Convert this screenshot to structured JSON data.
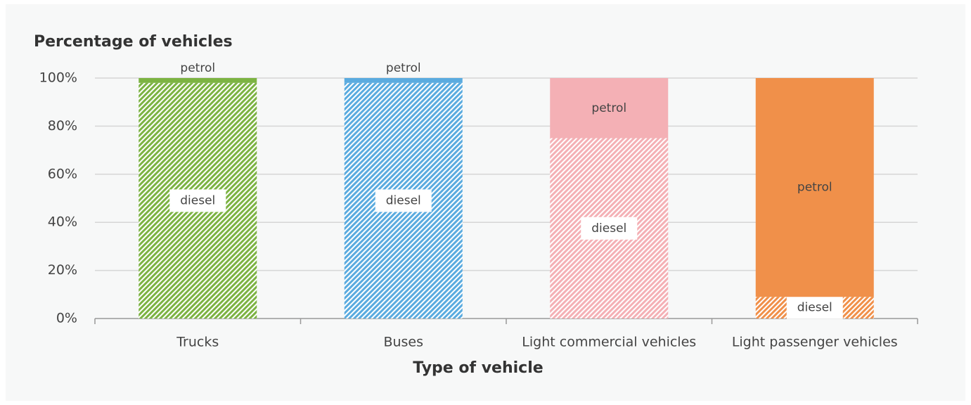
{
  "chart_data": {
    "type": "stacked-bar",
    "title": "Percentage of vehicles",
    "x_label": "Type of vehicle",
    "categories": [
      "Trucks",
      "Buses",
      "Light commercial vehicles",
      "Light passenger vehicles"
    ],
    "colors": [
      "#7cb342",
      "#5aabdf",
      "#f4b0b5",
      "#f0904a"
    ],
    "series": [
      {
        "name": "diesel",
        "pattern": "hatch",
        "values": [
          98,
          98,
          75,
          9
        ]
      },
      {
        "name": "petrol",
        "pattern": "solid",
        "values": [
          2,
          2,
          25,
          91
        ]
      }
    ],
    "ylim": [
      0,
      100
    ],
    "yticks": [
      {
        "value": 0,
        "label": "0%"
      },
      {
        "value": 20,
        "label": "20%"
      },
      {
        "value": 40,
        "label": "40%"
      },
      {
        "value": 60,
        "label": "60%"
      },
      {
        "value": 80,
        "label": "80%"
      },
      {
        "value": 100,
        "label": "100%"
      }
    ],
    "grid": true
  }
}
